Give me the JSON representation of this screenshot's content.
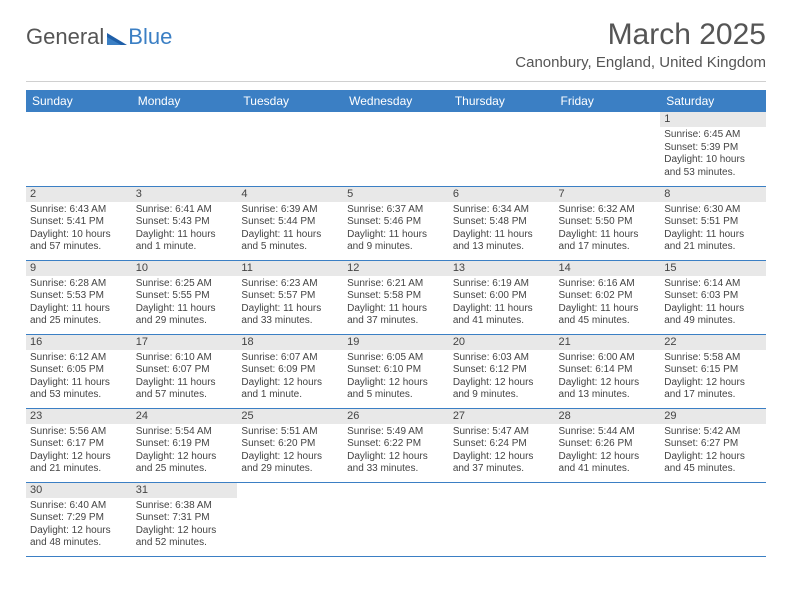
{
  "logo": {
    "part1": "General",
    "part2": "Blue"
  },
  "title": "March 2025",
  "subtitle": "Canonbury, England, United Kingdom",
  "colors": {
    "header_bg": "#3b7fc4",
    "header_fg": "#ffffff",
    "daynum_bg": "#e8e8e8",
    "border": "#3b7fc4",
    "text": "#444444",
    "title": "#555555"
  },
  "weekdays": [
    "Sunday",
    "Monday",
    "Tuesday",
    "Wednesday",
    "Thursday",
    "Friday",
    "Saturday"
  ],
  "weeks": [
    [
      null,
      null,
      null,
      null,
      null,
      null,
      {
        "n": "1",
        "sr": "Sunrise: 6:45 AM",
        "ss": "Sunset: 5:39 PM",
        "dl": "Daylight: 10 hours and 53 minutes."
      }
    ],
    [
      {
        "n": "2",
        "sr": "Sunrise: 6:43 AM",
        "ss": "Sunset: 5:41 PM",
        "dl": "Daylight: 10 hours and 57 minutes."
      },
      {
        "n": "3",
        "sr": "Sunrise: 6:41 AM",
        "ss": "Sunset: 5:43 PM",
        "dl": "Daylight: 11 hours and 1 minute."
      },
      {
        "n": "4",
        "sr": "Sunrise: 6:39 AM",
        "ss": "Sunset: 5:44 PM",
        "dl": "Daylight: 11 hours and 5 minutes."
      },
      {
        "n": "5",
        "sr": "Sunrise: 6:37 AM",
        "ss": "Sunset: 5:46 PM",
        "dl": "Daylight: 11 hours and 9 minutes."
      },
      {
        "n": "6",
        "sr": "Sunrise: 6:34 AM",
        "ss": "Sunset: 5:48 PM",
        "dl": "Daylight: 11 hours and 13 minutes."
      },
      {
        "n": "7",
        "sr": "Sunrise: 6:32 AM",
        "ss": "Sunset: 5:50 PM",
        "dl": "Daylight: 11 hours and 17 minutes."
      },
      {
        "n": "8",
        "sr": "Sunrise: 6:30 AM",
        "ss": "Sunset: 5:51 PM",
        "dl": "Daylight: 11 hours and 21 minutes."
      }
    ],
    [
      {
        "n": "9",
        "sr": "Sunrise: 6:28 AM",
        "ss": "Sunset: 5:53 PM",
        "dl": "Daylight: 11 hours and 25 minutes."
      },
      {
        "n": "10",
        "sr": "Sunrise: 6:25 AM",
        "ss": "Sunset: 5:55 PM",
        "dl": "Daylight: 11 hours and 29 minutes."
      },
      {
        "n": "11",
        "sr": "Sunrise: 6:23 AM",
        "ss": "Sunset: 5:57 PM",
        "dl": "Daylight: 11 hours and 33 minutes."
      },
      {
        "n": "12",
        "sr": "Sunrise: 6:21 AM",
        "ss": "Sunset: 5:58 PM",
        "dl": "Daylight: 11 hours and 37 minutes."
      },
      {
        "n": "13",
        "sr": "Sunrise: 6:19 AM",
        "ss": "Sunset: 6:00 PM",
        "dl": "Daylight: 11 hours and 41 minutes."
      },
      {
        "n": "14",
        "sr": "Sunrise: 6:16 AM",
        "ss": "Sunset: 6:02 PM",
        "dl": "Daylight: 11 hours and 45 minutes."
      },
      {
        "n": "15",
        "sr": "Sunrise: 6:14 AM",
        "ss": "Sunset: 6:03 PM",
        "dl": "Daylight: 11 hours and 49 minutes."
      }
    ],
    [
      {
        "n": "16",
        "sr": "Sunrise: 6:12 AM",
        "ss": "Sunset: 6:05 PM",
        "dl": "Daylight: 11 hours and 53 minutes."
      },
      {
        "n": "17",
        "sr": "Sunrise: 6:10 AM",
        "ss": "Sunset: 6:07 PM",
        "dl": "Daylight: 11 hours and 57 minutes."
      },
      {
        "n": "18",
        "sr": "Sunrise: 6:07 AM",
        "ss": "Sunset: 6:09 PM",
        "dl": "Daylight: 12 hours and 1 minute."
      },
      {
        "n": "19",
        "sr": "Sunrise: 6:05 AM",
        "ss": "Sunset: 6:10 PM",
        "dl": "Daylight: 12 hours and 5 minutes."
      },
      {
        "n": "20",
        "sr": "Sunrise: 6:03 AM",
        "ss": "Sunset: 6:12 PM",
        "dl": "Daylight: 12 hours and 9 minutes."
      },
      {
        "n": "21",
        "sr": "Sunrise: 6:00 AM",
        "ss": "Sunset: 6:14 PM",
        "dl": "Daylight: 12 hours and 13 minutes."
      },
      {
        "n": "22",
        "sr": "Sunrise: 5:58 AM",
        "ss": "Sunset: 6:15 PM",
        "dl": "Daylight: 12 hours and 17 minutes."
      }
    ],
    [
      {
        "n": "23",
        "sr": "Sunrise: 5:56 AM",
        "ss": "Sunset: 6:17 PM",
        "dl": "Daylight: 12 hours and 21 minutes."
      },
      {
        "n": "24",
        "sr": "Sunrise: 5:54 AM",
        "ss": "Sunset: 6:19 PM",
        "dl": "Daylight: 12 hours and 25 minutes."
      },
      {
        "n": "25",
        "sr": "Sunrise: 5:51 AM",
        "ss": "Sunset: 6:20 PM",
        "dl": "Daylight: 12 hours and 29 minutes."
      },
      {
        "n": "26",
        "sr": "Sunrise: 5:49 AM",
        "ss": "Sunset: 6:22 PM",
        "dl": "Daylight: 12 hours and 33 minutes."
      },
      {
        "n": "27",
        "sr": "Sunrise: 5:47 AM",
        "ss": "Sunset: 6:24 PM",
        "dl": "Daylight: 12 hours and 37 minutes."
      },
      {
        "n": "28",
        "sr": "Sunrise: 5:44 AM",
        "ss": "Sunset: 6:26 PM",
        "dl": "Daylight: 12 hours and 41 minutes."
      },
      {
        "n": "29",
        "sr": "Sunrise: 5:42 AM",
        "ss": "Sunset: 6:27 PM",
        "dl": "Daylight: 12 hours and 45 minutes."
      }
    ],
    [
      {
        "n": "30",
        "sr": "Sunrise: 6:40 AM",
        "ss": "Sunset: 7:29 PM",
        "dl": "Daylight: 12 hours and 48 minutes."
      },
      {
        "n": "31",
        "sr": "Sunrise: 6:38 AM",
        "ss": "Sunset: 7:31 PM",
        "dl": "Daylight: 12 hours and 52 minutes."
      },
      null,
      null,
      null,
      null,
      null
    ]
  ]
}
